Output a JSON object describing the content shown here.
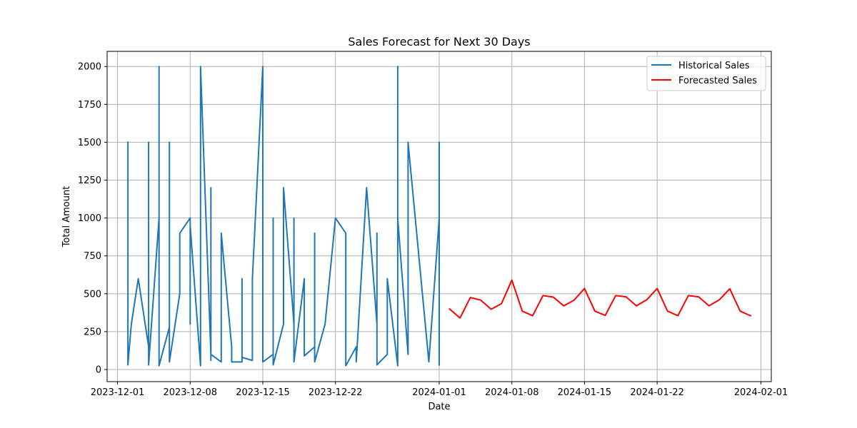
{
  "chart_data": {
    "type": "line",
    "title": "Sales Forecast for Next 30 Days",
    "xlabel": "Date",
    "ylabel": "Total Amount",
    "xlim": [
      "2023-11-30",
      "2024-02-02"
    ],
    "ylim": [
      -80,
      2100
    ],
    "x_ticks": [
      "2023-12-01",
      "2023-12-08",
      "2023-12-15",
      "2023-12-22",
      "2024-01-01",
      "2024-01-08",
      "2024-01-15",
      "2024-01-22",
      "2024-02-01"
    ],
    "y_ticks": [
      0,
      250,
      500,
      750,
      1000,
      1250,
      1500,
      1750,
      2000
    ],
    "grid": true,
    "legend_position": "top-right",
    "series": [
      {
        "name": "Historical Sales",
        "color": "#1f77b4",
        "points": [
          [
            "2023-12-02T00:00",
            1500
          ],
          [
            "2023-12-02T00:00",
            30
          ],
          [
            "2023-12-02T08:00",
            300
          ],
          [
            "2023-12-03T00:00",
            600
          ],
          [
            "2023-12-04T00:00",
            150
          ],
          [
            "2023-12-04T00:00",
            1500
          ],
          [
            "2023-12-04T00:00",
            30
          ],
          [
            "2023-12-05T00:00",
            1000
          ],
          [
            "2023-12-05T00:00",
            2000
          ],
          [
            "2023-12-05T00:00",
            25
          ],
          [
            "2023-12-06T00:00",
            280
          ],
          [
            "2023-12-06T00:00",
            1500
          ],
          [
            "2023-12-06T00:00",
            50
          ],
          [
            "2023-12-07T00:00",
            500
          ],
          [
            "2023-12-07T00:00",
            900
          ],
          [
            "2023-12-08T00:00",
            1000
          ],
          [
            "2023-12-08T00:00",
            300
          ],
          [
            "2023-12-08T00:00",
            950
          ],
          [
            "2023-12-09T00:00",
            25
          ],
          [
            "2023-12-09T00:00",
            2000
          ],
          [
            "2023-12-10T00:00",
            100
          ],
          [
            "2023-12-10T00:00",
            1200
          ],
          [
            "2023-12-10T00:00",
            60
          ],
          [
            "2023-12-10T00:00",
            100
          ],
          [
            "2023-12-11T00:00",
            50
          ],
          [
            "2023-12-11T00:00",
            900
          ],
          [
            "2023-12-12T00:00",
            150
          ],
          [
            "2023-12-12T00:00",
            50
          ],
          [
            "2023-12-13T00:00",
            50
          ],
          [
            "2023-12-13T00:00",
            600
          ],
          [
            "2023-12-13T00:00",
            80
          ],
          [
            "2023-12-14T00:00",
            60
          ],
          [
            "2023-12-14T00:00",
            600
          ],
          [
            "2023-12-15T00:00",
            2000
          ],
          [
            "2023-12-15T00:00",
            50
          ],
          [
            "2023-12-16T00:00",
            100
          ],
          [
            "2023-12-16T00:00",
            1000
          ],
          [
            "2023-12-16T00:00",
            30
          ],
          [
            "2023-12-17T00:00",
            300
          ],
          [
            "2023-12-17T00:00",
            1200
          ],
          [
            "2023-12-18T00:00",
            300
          ],
          [
            "2023-12-18T00:00",
            1000
          ],
          [
            "2023-12-18T00:00",
            50
          ],
          [
            "2023-12-19T00:00",
            600
          ],
          [
            "2023-12-19T00:00",
            90
          ],
          [
            "2023-12-20T00:00",
            150
          ],
          [
            "2023-12-20T00:00",
            900
          ],
          [
            "2023-12-20T00:00",
            50
          ],
          [
            "2023-12-21T00:00",
            300
          ],
          [
            "2023-12-22T00:00",
            1000
          ],
          [
            "2023-12-23T00:00",
            900
          ],
          [
            "2023-12-23T00:00",
            300
          ],
          [
            "2023-12-23T00:00",
            25
          ],
          [
            "2023-12-24T00:00",
            150
          ],
          [
            "2023-12-24T00:00",
            50
          ],
          [
            "2023-12-25T00:00",
            1200
          ],
          [
            "2023-12-26T00:00",
            300
          ],
          [
            "2023-12-26T00:00",
            900
          ],
          [
            "2023-12-26T00:00",
            30
          ],
          [
            "2023-12-27T00:00",
            100
          ],
          [
            "2023-12-27T00:00",
            600
          ],
          [
            "2023-12-28T00:00",
            25
          ],
          [
            "2023-12-28T00:00",
            2000
          ],
          [
            "2023-12-28T00:00",
            1000
          ],
          [
            "2023-12-29T00:00",
            100
          ],
          [
            "2023-12-29T00:00",
            1200
          ],
          [
            "2023-12-29T00:00",
            100
          ],
          [
            "2023-12-29T00:00",
            1500
          ],
          [
            "2023-12-31T00:00",
            50
          ],
          [
            "2024-01-01T00:00",
            1000
          ],
          [
            "2024-01-01T00:00",
            1500
          ],
          [
            "2024-01-01T00:00",
            30
          ]
        ]
      },
      {
        "name": "Forecasted Sales",
        "color": "#ff0000",
        "points": [
          [
            "2024-01-02",
            400
          ],
          [
            "2024-01-03",
            340
          ],
          [
            "2024-01-04",
            475
          ],
          [
            "2024-01-05",
            458
          ],
          [
            "2024-01-06",
            398
          ],
          [
            "2024-01-07",
            435
          ],
          [
            "2024-01-08",
            590
          ],
          [
            "2024-01-09",
            385
          ],
          [
            "2024-01-10",
            355
          ],
          [
            "2024-01-11",
            488
          ],
          [
            "2024-01-12",
            478
          ],
          [
            "2024-01-13",
            420
          ],
          [
            "2024-01-14",
            458
          ],
          [
            "2024-01-15",
            535
          ],
          [
            "2024-01-16",
            385
          ],
          [
            "2024-01-17",
            357
          ],
          [
            "2024-01-18",
            488
          ],
          [
            "2024-01-19",
            480
          ],
          [
            "2024-01-20",
            420
          ],
          [
            "2024-01-21",
            460
          ],
          [
            "2024-01-22",
            535
          ],
          [
            "2024-01-23",
            385
          ],
          [
            "2024-01-24",
            355
          ],
          [
            "2024-01-25",
            488
          ],
          [
            "2024-01-26",
            480
          ],
          [
            "2024-01-27",
            420
          ],
          [
            "2024-01-28",
            460
          ],
          [
            "2024-01-29",
            533
          ],
          [
            "2024-01-30",
            385
          ],
          [
            "2024-01-31",
            355
          ]
        ]
      }
    ]
  }
}
